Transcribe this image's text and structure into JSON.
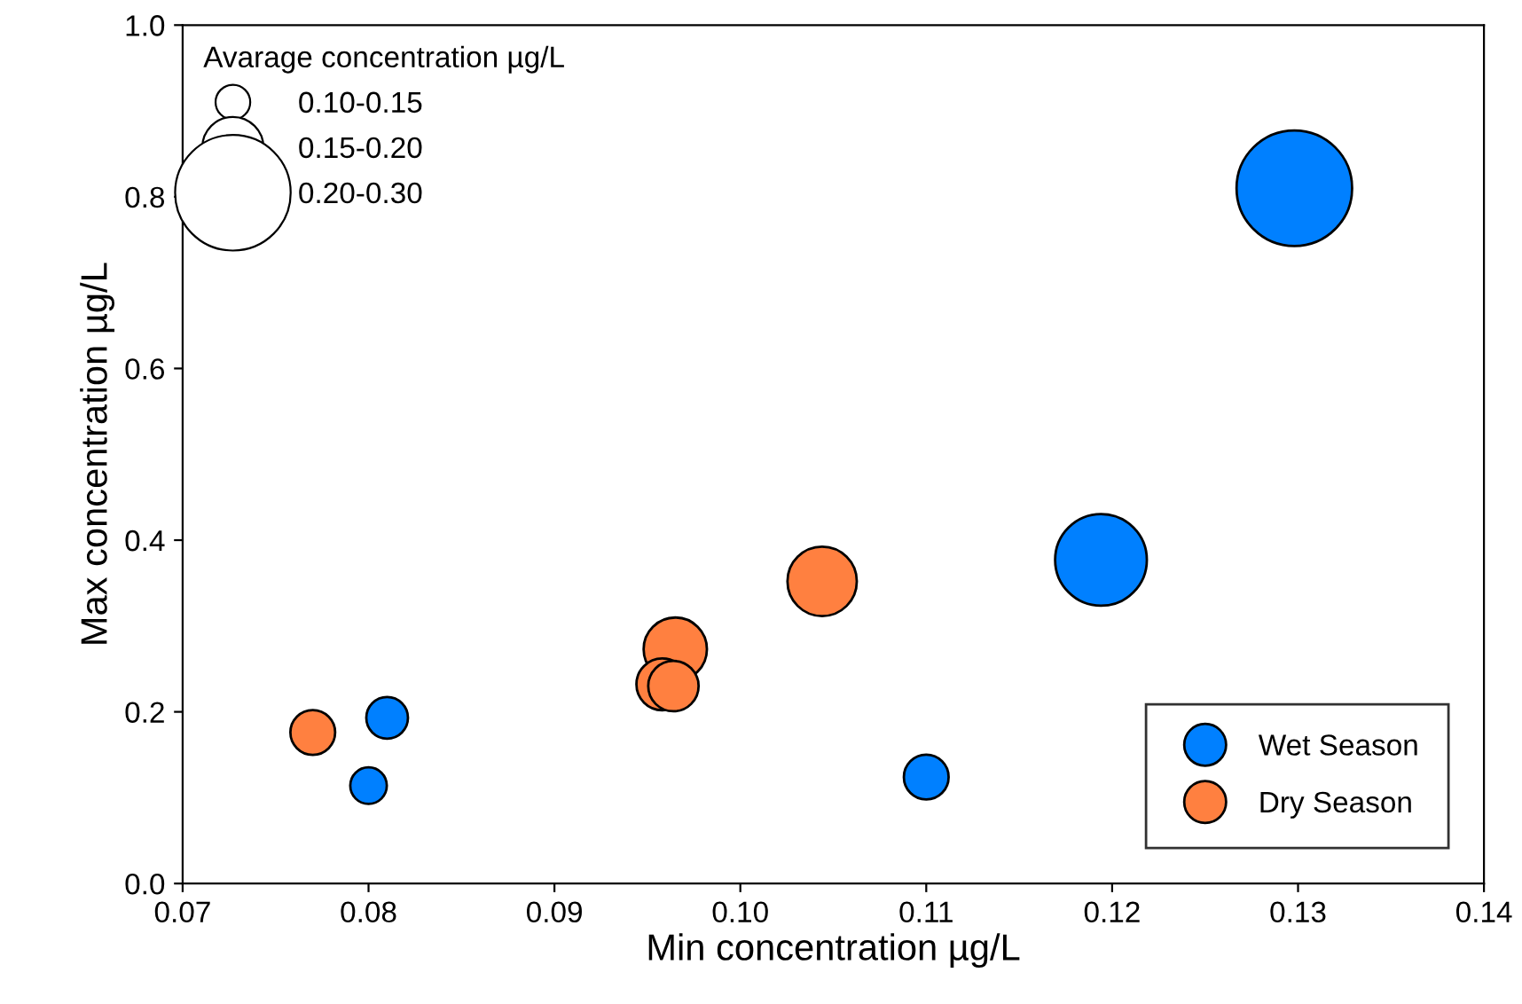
{
  "chart_data": {
    "type": "bubble",
    "xlabel": "Min concentration µg/L",
    "ylabel": "Max concentration µg/L",
    "legend_title": "Avarage concentration µg/L",
    "xlim": [
      0.07,
      0.14
    ],
    "xticks": [
      {
        "value": 0.07,
        "label": "0.07"
      },
      {
        "value": 0.08,
        "label": "0.08"
      },
      {
        "value": 0.09,
        "label": "0.09"
      },
      {
        "value": 0.1,
        "label": "0.10"
      },
      {
        "value": 0.11,
        "label": "0.11"
      },
      {
        "value": 0.12,
        "label": "0.12"
      },
      {
        "value": 0.13,
        "label": "0.13"
      },
      {
        "value": 0.14,
        "label": "0.14"
      }
    ],
    "ylim": [
      0,
      1.0
    ],
    "yticks": [
      {
        "value": 0,
        "label": "0.0"
      },
      {
        "value": 0.2,
        "label": "0.2"
      },
      {
        "value": 0.4,
        "label": "0.4"
      },
      {
        "value": 0.6,
        "label": "0.6"
      },
      {
        "value": 0.8,
        "label": "0.8"
      },
      {
        "value": 1.0,
        "label": "1.0"
      }
    ],
    "size_legend": [
      {
        "value": 0.09,
        "label": "0.10-0.15"
      },
      {
        "value": 0.28,
        "label": "0.15-0.20"
      },
      {
        "value": 1,
        "label": "0.20-0.30"
      }
    ],
    "legend": "bottom right",
    "grid": false,
    "series": [
      {
        "name": "Wet Season",
        "color": "#0080ff",
        "x": [
          0.08,
          0.081,
          0.11,
          0.1194,
          0.1298
        ],
        "values": [
          0.114,
          0.193,
          0.124,
          0.377,
          0.81
        ],
        "sizes": [
          0.1,
          0.13,
          0.15,
          0.63,
          1
        ]
      },
      {
        "name": "Dry Season",
        "color": "#ff8040",
        "x": [
          0.077,
          0.0965,
          0.0958,
          0.0964,
          0.1044
        ],
        "values": [
          0.176,
          0.273,
          0.232,
          0.23,
          0.352
        ],
        "sizes": [
          0.15,
          0.3,
          0.2,
          0.19,
          0.36
        ]
      }
    ]
  }
}
